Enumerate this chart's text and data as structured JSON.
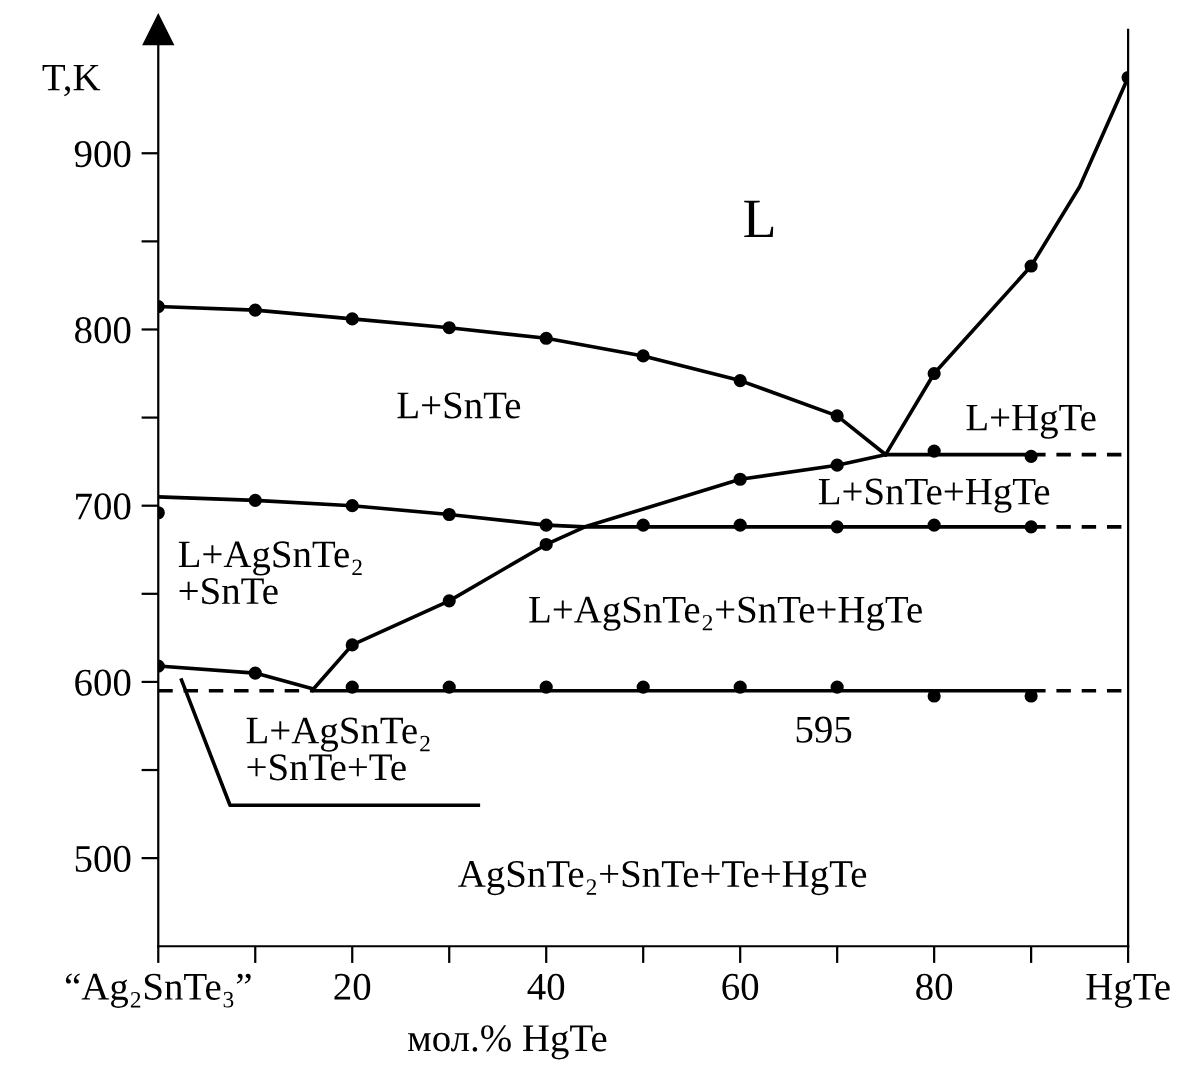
{
  "chart_data": {
    "type": "line",
    "xlabel": "мол.% HgTe",
    "ylabel": "T,K",
    "xlim": [
      0,
      100
    ],
    "ylim": [
      450,
      970
    ],
    "xticks": [
      {
        "value": 0,
        "label": "“Ag₂SnTe₃”"
      },
      {
        "value": 10,
        "label": null
      },
      20,
      {
        "value": 30,
        "label": null
      },
      40,
      {
        "value": 50,
        "label": null
      },
      60,
      {
        "value": 70,
        "label": null
      },
      80,
      {
        "value": 90,
        "label": null
      },
      {
        "value": 100,
        "label": "HgTe"
      }
    ],
    "yticks": [
      500,
      {
        "value": 550,
        "label": null
      },
      600,
      {
        "value": 650,
        "label": null
      },
      700,
      {
        "value": 750,
        "label": null
      },
      800,
      {
        "value": 850,
        "label": null
      },
      900
    ],
    "grid": false,
    "legend": false,
    "series": [
      {
        "color": "#000000",
        "marker": "none",
        "line_style": "solid",
        "x": [
          0,
          10,
          20,
          30,
          40,
          50,
          60,
          70,
          75
        ],
        "values": [
          813,
          811,
          806,
          801,
          795,
          785,
          771,
          751,
          729
        ]
      },
      {
        "color": "#000000",
        "marker": "none",
        "line_style": "solid",
        "x": [
          75,
          80,
          90,
          95,
          100
        ],
        "values": [
          729,
          775,
          836,
          881,
          943
        ]
      },
      {
        "color": "#000000",
        "marker": "none",
        "line_style": "solid",
        "x": [
          75,
          90
        ],
        "values": [
          729,
          729
        ]
      },
      {
        "color": "#000000",
        "marker": "none",
        "line_style": "dashed",
        "x": [
          90,
          100
        ],
        "values": [
          729,
          729
        ]
      },
      {
        "color": "#000000",
        "marker": "none",
        "line_style": "solid",
        "x": [
          0,
          10,
          20,
          30,
          40,
          44,
          90
        ],
        "values": [
          705,
          703,
          700,
          695,
          689,
          688,
          688
        ]
      },
      {
        "color": "#000000",
        "marker": "none",
        "line_style": "solid",
        "x": [
          0,
          10,
          16,
          20,
          30,
          40,
          44,
          60,
          70,
          75
        ],
        "values": [
          609,
          605,
          596,
          621,
          646,
          678,
          688,
          715,
          723,
          729
        ]
      },
      {
        "color": "#000000",
        "marker": "none",
        "line_style": "dashed",
        "x": [
          90,
          100
        ],
        "values": [
          688,
          688
        ]
      },
      {
        "color": "#000000",
        "marker": "none",
        "line_style": "dashed",
        "x": [
          0,
          16
        ],
        "values": [
          595,
          595
        ]
      },
      {
        "color": "#000000",
        "marker": "none",
        "line_style": "solid",
        "x": [
          16,
          90
        ],
        "values": [
          595,
          595
        ]
      },
      {
        "color": "#000000",
        "marker": "none",
        "line_style": "dashed",
        "x": [
          90,
          100
        ],
        "values": [
          595,
          595
        ]
      },
      {
        "color": "#000000",
        "marker": "none",
        "line_style": "solid",
        "x": [
          2.4,
          7.4,
          33
        ],
        "values": [
          601,
          530,
          530
        ]
      },
      {
        "type": "scatter",
        "color": "#000000",
        "marker": "circle",
        "x": [
          0,
          10,
          20,
          30,
          40,
          50,
          60,
          70,
          80,
          90,
          100,
          80,
          90,
          0,
          10,
          20,
          30,
          40,
          20,
          30,
          40,
          60,
          70,
          50,
          60,
          70,
          80,
          90,
          0,
          10,
          20,
          30,
          40,
          50,
          60,
          70,
          80,
          90
        ],
        "values": [
          813,
          811,
          806,
          801,
          795,
          785,
          771,
          751,
          775,
          836,
          943,
          731,
          728,
          696,
          703,
          700,
          695,
          689,
          621,
          646,
          678,
          715,
          723,
          689,
          689,
          688,
          689,
          688,
          609,
          605,
          597,
          597,
          597,
          597,
          597,
          597,
          592,
          592
        ]
      }
    ],
    "annotations": [
      "L",
      "L+SnTe",
      "L+HgTe",
      "L+SnTe+HgTe",
      "L+AgSnTe₂\n+SnTe",
      "L+AgSnTe₂+SnTe+HgTe",
      "L+AgSnTe₂\n+SnTe+Te",
      "595",
      "AgSnTe₂+SnTe+Te+HgTe"
    ]
  }
}
